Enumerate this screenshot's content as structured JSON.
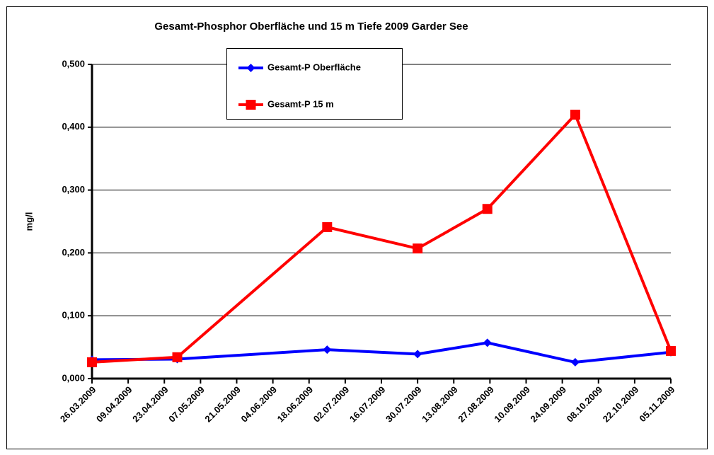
{
  "chart_data": {
    "type": "line",
    "title": "Gesamt-Phosphor Oberfläche  und 15 m Tiefe 2009 Garder See",
    "ylabel": "mg/l",
    "x": [
      "26.03.2009",
      "28.04.2009",
      "25.06.2009",
      "30.07.2009",
      "26.08.2009",
      "29.09.2009",
      "05.11.2009"
    ],
    "series": [
      {
        "name": "Gesamt-P  Oberfläche",
        "color": "#0000ff",
        "marker": "diamond",
        "values": [
          0.03,
          0.031,
          0.046,
          0.039,
          0.057,
          0.026,
          0.042
        ]
      },
      {
        "name": "Gesamt-P  15 m",
        "color": "#ff0000",
        "marker": "square",
        "values": [
          0.026,
          0.034,
          0.241,
          0.207,
          0.27,
          0.42,
          0.044
        ]
      }
    ],
    "xlim": [
      "26.03.2009",
      "05.11.2009"
    ],
    "xticks": [
      "26.03.2009",
      "09.04.2009",
      "23.04.2009",
      "07.05.2009",
      "21.05.2009",
      "04.06.2009",
      "18.06.2009",
      "02.07.2009",
      "16.07.2009",
      "30.07.2009",
      "13.08.2009",
      "27.08.2009",
      "10.09.2009",
      "24.09.2009",
      "08.10.2009",
      "22.10.2009",
      "05.11.2009"
    ],
    "ylim": [
      0,
      0.5
    ],
    "yticks": [
      {
        "value": 0,
        "label": "0,000"
      },
      {
        "value": 0.1,
        "label": "0,100"
      },
      {
        "value": 0.2,
        "label": "0,200"
      },
      {
        "value": 0.3,
        "label": "0,300"
      },
      {
        "value": 0.4,
        "label": "0,400"
      },
      {
        "value": 0.5,
        "label": "0,500"
      }
    ],
    "grid": true,
    "legend": "top"
  }
}
